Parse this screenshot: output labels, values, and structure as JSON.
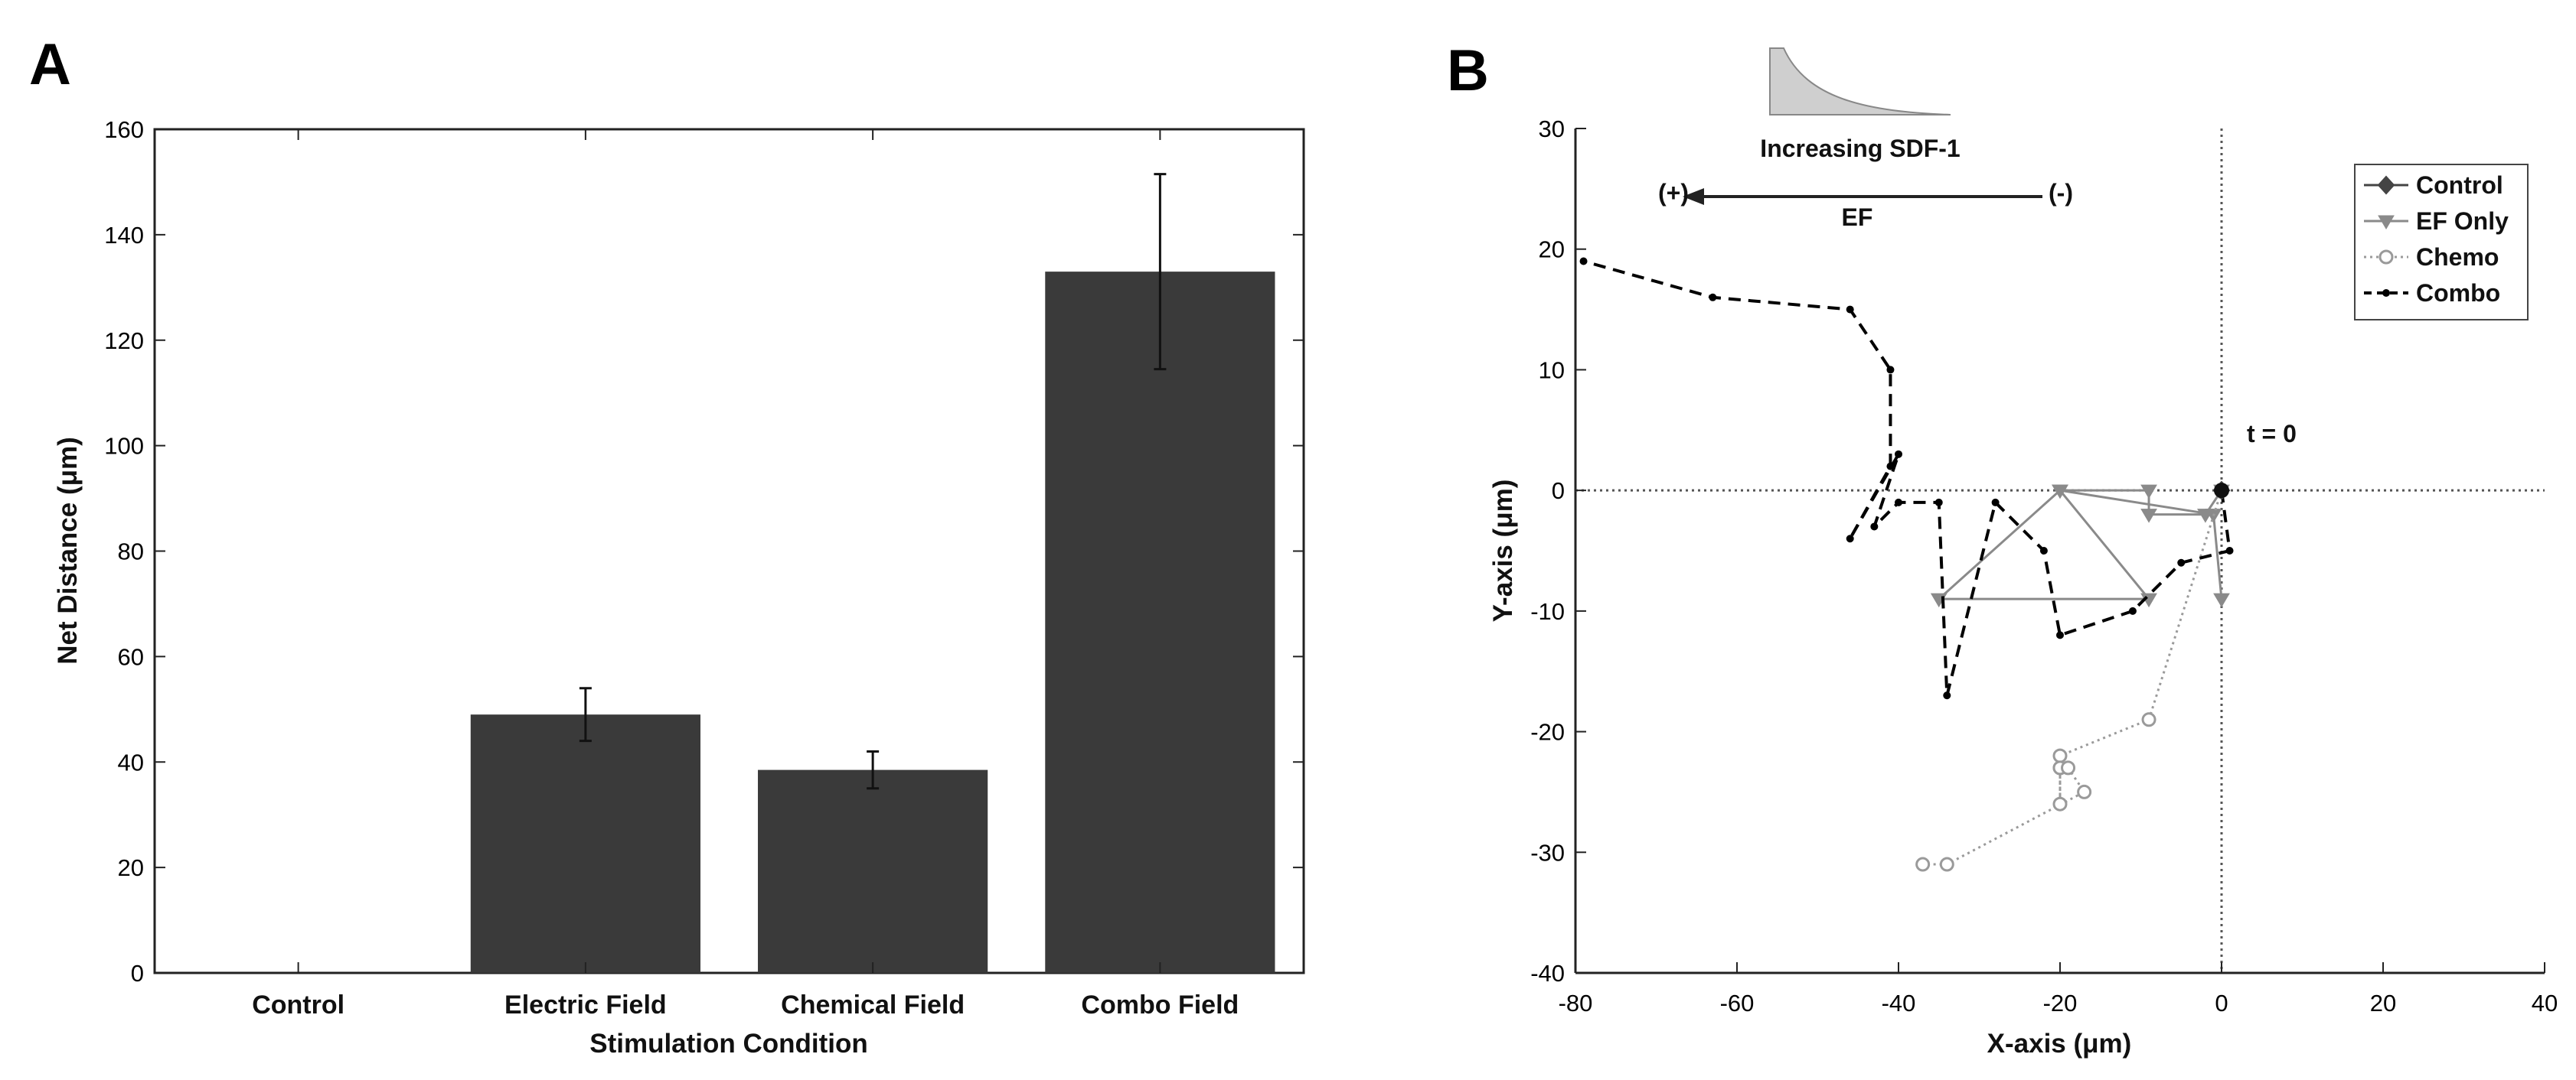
{
  "figure": {
    "panel_a_label": "A",
    "panel_b_label": "B"
  },
  "chart_data": [
    {
      "type": "bar",
      "panel": "A",
      "categories": [
        "Control",
        "Electric Field",
        "Chemical Field",
        "Combo Field"
      ],
      "values": [
        0,
        49,
        38.5,
        133
      ],
      "errors": [
        0,
        5,
        3.5,
        18.5
      ],
      "xlabel": "Stimulation Condition",
      "ylabel": "Net Distance (μm)",
      "ylim": [
        0,
        160
      ],
      "yticks": [
        0,
        20,
        40,
        60,
        80,
        100,
        120,
        140,
        160
      ],
      "bar_color": "#3a3a3a"
    },
    {
      "type": "line",
      "panel": "B",
      "xlabel": "X-axis (μm)",
      "ylabel": "Y-axis (μm)",
      "xlim": [
        -80,
        40
      ],
      "ylim": [
        -40,
        30
      ],
      "xticks": [
        -80,
        -60,
        -40,
        -20,
        0,
        20,
        40
      ],
      "yticks": [
        30,
        20,
        10,
        0,
        -10,
        -20,
        -30,
        -40
      ],
      "legend_position": "top-right",
      "series": [
        {
          "name": "Control",
          "style": "solid",
          "marker": "diamond",
          "color": "#444444",
          "x": [
            0,
            0
          ],
          "y": [
            0,
            0
          ]
        },
        {
          "name": "EF Only",
          "style": "solid",
          "marker": "triangle-down",
          "color": "#8a8a8a",
          "x": [
            0,
            -2,
            -9,
            -9,
            -20,
            -9,
            -35,
            -20,
            -1,
            0
          ],
          "y": [
            0,
            -2,
            -2,
            0,
            0,
            -9,
            -9,
            0,
            -2,
            -9
          ]
        },
        {
          "name": "Chemo",
          "style": "dotted",
          "marker": "circle",
          "color": "#9a9a9a",
          "x": [
            0,
            -9,
            -20,
            -20,
            -20,
            -20,
            -19,
            -17,
            -34,
            -37
          ],
          "y": [
            0,
            -19,
            -22,
            -23,
            -26,
            -23,
            -23,
            -25,
            -31,
            -31
          ]
        },
        {
          "name": "Combo",
          "style": "dashed",
          "marker": "dot",
          "color": "#000000",
          "x": [
            0,
            1,
            -5,
            -11,
            -20,
            -22,
            -28,
            -34,
            -35,
            -40,
            -43,
            -40,
            -46,
            -41,
            -41,
            -46,
            -63,
            -79
          ],
          "y": [
            0,
            -5,
            -6,
            -10,
            -12,
            -5,
            -1,
            -17,
            -1,
            -1,
            -3,
            3,
            -4,
            2,
            10,
            15,
            16,
            19
          ]
        }
      ],
      "annotations": {
        "gradient_label": "Increasing SDF-1",
        "field_label": "EF",
        "positive_pole": "(+)",
        "negative_pole": "(-)",
        "origin_label": "t = 0"
      }
    }
  ]
}
